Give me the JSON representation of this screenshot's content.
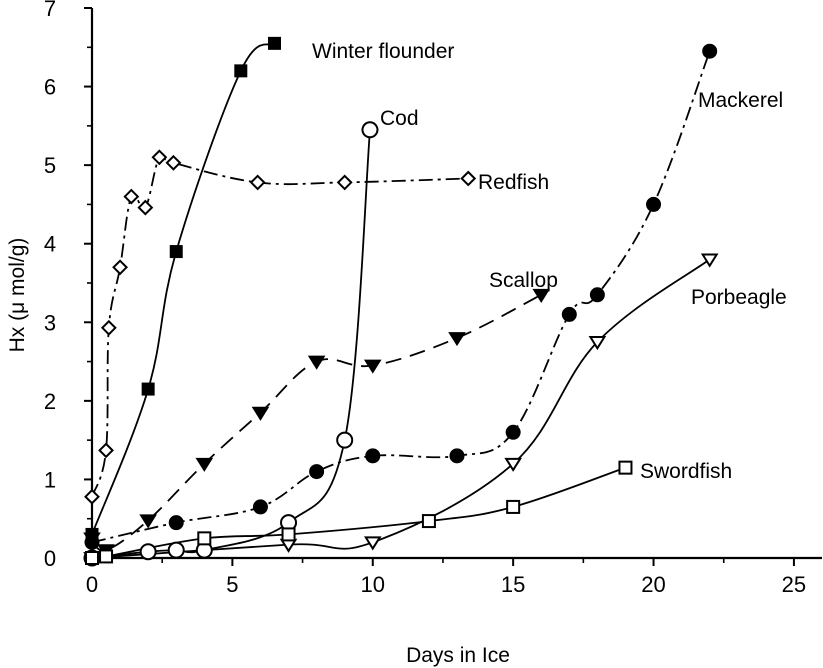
{
  "chart_data": {
    "type": "line",
    "title": "",
    "xlabel": "Days in Ice",
    "ylabel": "Hx (μ mol/g)",
    "xlim": [
      0,
      26
    ],
    "ylim": [
      0,
      7
    ],
    "xticks": [
      0,
      5,
      10,
      15,
      20,
      25
    ],
    "yticks": [
      0,
      1,
      2,
      3,
      4,
      5,
      6,
      7
    ],
    "grid": false,
    "legend": "none (series labeled inline)",
    "series": [
      {
        "name": "Winter flounder",
        "marker": "filled-square",
        "x": [
          0,
          2,
          3,
          5.3,
          6.5
        ],
        "y": [
          0.3,
          2.15,
          3.9,
          6.2,
          6.55
        ],
        "line_style": "solid"
      },
      {
        "name": "Redfish",
        "marker": "open-diamond",
        "x": [
          0,
          0.5,
          0.6,
          1,
          1.4,
          1.9,
          2.4,
          2.9,
          5.9,
          9,
          13.4
        ],
        "y": [
          0.78,
          1.37,
          2.93,
          3.7,
          4.6,
          4.46,
          5.1,
          5.03,
          4.78,
          4.78,
          4.83
        ],
        "line_style": "dash-dot"
      },
      {
        "name": "Cod",
        "marker": "open-circle",
        "x": [
          0,
          2,
          3,
          4,
          7,
          9,
          9.9
        ],
        "y": [
          0,
          0.08,
          0.1,
          0.1,
          0.45,
          1.5,
          5.45
        ],
        "line_style": "solid"
      },
      {
        "name": "Mackerel",
        "marker": "filled-circle",
        "x": [
          0,
          3,
          6,
          8,
          10,
          13,
          15,
          17,
          18,
          20,
          22
        ],
        "y": [
          0.2,
          0.45,
          0.65,
          1.1,
          1.3,
          1.3,
          1.6,
          3.1,
          3.35,
          4.5,
          6.45
        ],
        "line_style": "dash-dot"
      },
      {
        "name": "Scallop",
        "marker": "filled-triangle-down",
        "x": [
          0,
          0.5,
          2,
          4,
          6,
          8,
          10,
          13,
          16
        ],
        "y": [
          0.25,
          0.1,
          0.48,
          1.2,
          1.85,
          2.5,
          2.45,
          2.8,
          3.35
        ],
        "line_style": "dashed"
      },
      {
        "name": "Porbeagle",
        "marker": "open-triangle-down",
        "x": [
          0,
          7,
          10,
          15,
          18,
          22
        ],
        "y": [
          0,
          0.17,
          0.2,
          1.2,
          2.75,
          3.8
        ],
        "line_style": "solid"
      },
      {
        "name": "Swordfish",
        "marker": "open-square",
        "x": [
          0,
          0.5,
          4,
          7,
          12,
          15,
          19
        ],
        "y": [
          0,
          0.02,
          0.25,
          0.3,
          0.47,
          0.65,
          1.15
        ],
        "line_style": "solid"
      }
    ]
  }
}
